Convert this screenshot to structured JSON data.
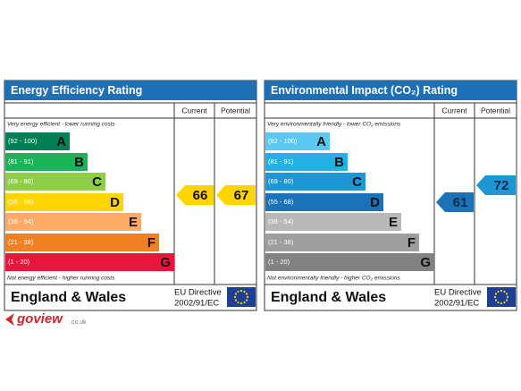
{
  "panels": [
    {
      "title": "Energy Efficiency Rating",
      "columns": [
        "Current",
        "Potential"
      ],
      "top_note": "Very energy efficient - lower running costs",
      "bottom_note": "Not energy efficient - higher running costs",
      "bands": [
        {
          "range": "(92 - 100)",
          "letter": "A",
          "color": "#008054"
        },
        {
          "range": "(81 - 91)",
          "letter": "B",
          "color": "#19b459"
        },
        {
          "range": "(69 - 80)",
          "letter": "C",
          "color": "#8dce46"
        },
        {
          "range": "(55 - 68)",
          "letter": "D",
          "color": "#ffd500"
        },
        {
          "range": "(39 - 54)",
          "letter": "E",
          "color": "#fcaa65"
        },
        {
          "range": "(21 - 38)",
          "letter": "F",
          "color": "#ef8023"
        },
        {
          "range": "(1 - 20)",
          "letter": "G",
          "color": "#e9153b"
        }
      ],
      "current": {
        "value": "66",
        "color": "#ffd500"
      },
      "potential": {
        "value": "67",
        "color": "#ffd500"
      },
      "footer": {
        "region": "England & Wales",
        "directive": [
          "EU Directive",
          "2002/91/EC"
        ]
      }
    },
    {
      "title": "Environmental Impact (CO₂) Rating",
      "columns": [
        "Current",
        "Potential"
      ],
      "top_note": "Very environmentally friendly - lower CO₂ emissions",
      "bottom_note": "Not environmentally friendly - higher CO₂ emissions",
      "bands": [
        {
          "range": "(92 - 100)",
          "letter": "A",
          "color": "#5bc8f2"
        },
        {
          "range": "(81 - 91)",
          "letter": "B",
          "color": "#22b0e6"
        },
        {
          "range": "(69 - 80)",
          "letter": "C",
          "color": "#1e96d1"
        },
        {
          "range": "(55 - 68)",
          "letter": "D",
          "color": "#1b72b6"
        },
        {
          "range": "(39 - 54)",
          "letter": "E",
          "color": "#b8b8b8"
        },
        {
          "range": "(21 - 38)",
          "letter": "F",
          "color": "#9e9e9e"
        },
        {
          "range": "(1 - 20)",
          "letter": "G",
          "color": "#828282"
        }
      ],
      "current": {
        "value": "61",
        "color": "#1b72b6"
      },
      "potential": {
        "value": "72",
        "color": "#1e96d1"
      },
      "footer": {
        "region": "England & Wales",
        "directive": [
          "EU Directive",
          "2002/91/EC"
        ]
      }
    }
  ],
  "logo": {
    "brand": "goview",
    "domain": ".co.uk"
  }
}
